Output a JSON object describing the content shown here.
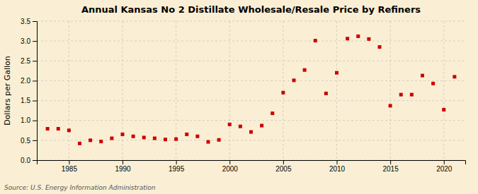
{
  "chart_data": {
    "type": "scatter",
    "title": "Annual Kansas No 2 Distillate Wholesale/Resale Price by Refiners",
    "ylabel": "Dollars per Gallon",
    "source": "Source: U.S. Energy Information Administration",
    "x": [
      1983,
      1984,
      1985,
      1986,
      1987,
      1988,
      1989,
      1990,
      1991,
      1992,
      1993,
      1994,
      1995,
      1996,
      1997,
      1998,
      1999,
      2000,
      2001,
      2002,
      2003,
      2004,
      2005,
      2006,
      2007,
      2008,
      2009,
      2010,
      2011,
      2012,
      2013,
      2014,
      2015,
      2016,
      2017,
      2018,
      2019,
      2020,
      2021
    ],
    "values": [
      0.79,
      0.79,
      0.75,
      0.42,
      0.5,
      0.47,
      0.55,
      0.65,
      0.6,
      0.57,
      0.55,
      0.52,
      0.53,
      0.65,
      0.6,
      0.46,
      0.51,
      0.9,
      0.85,
      0.71,
      0.87,
      1.18,
      1.7,
      2.01,
      2.27,
      3.01,
      1.68,
      2.2,
      3.06,
      3.12,
      3.05,
      2.85,
      1.37,
      1.65,
      1.65,
      2.13,
      1.93,
      1.27,
      2.1
    ],
    "color": "#cc0000",
    "marker": "square",
    "xlim": [
      1982,
      2022
    ],
    "ylim": [
      0.0,
      3.5
    ],
    "xticks": [
      1985,
      1990,
      1995,
      2000,
      2005,
      2010,
      2015,
      2020
    ],
    "yticks": [
      {
        "value": 0.0,
        "label": "0.0"
      },
      0.5,
      {
        "value": 1.0,
        "label": "1.0"
      },
      1.5,
      {
        "value": 2.0,
        "label": "2.0"
      },
      2.5,
      {
        "value": 3.0,
        "label": "3.0"
      },
      3.5
    ],
    "grid": true
  }
}
